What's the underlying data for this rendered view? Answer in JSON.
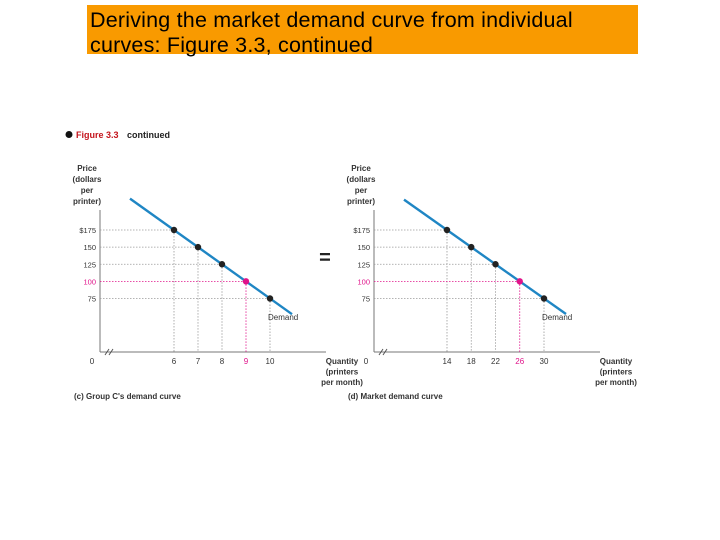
{
  "slide": {
    "title": "Deriving the market demand curve from individual curves: Figure 3.3, continued"
  },
  "figure": {
    "label": "Figure 3.3",
    "label_suffix": "continued",
    "equals_sign": "=",
    "colors": {
      "curve": "#1f86c4",
      "point": "#222222",
      "highlight": "#e0138a",
      "guide": "#9a9a9a",
      "label_red": "#c4141c"
    }
  },
  "chart_data": [
    {
      "type": "line",
      "title": "(c) Group C's demand curve",
      "ylabel": "Price (dollars per printer)",
      "xlabel": "Quantity (printers per month)",
      "origin_label": "0",
      "yticks": [
        "$175",
        "150",
        "125",
        "100",
        "75"
      ],
      "xticks": [
        "6",
        "7",
        "8",
        "9",
        "10"
      ],
      "series": [
        {
          "name": "Demand",
          "points": [
            {
              "x": 6,
              "y": 175
            },
            {
              "x": 7,
              "y": 150
            },
            {
              "x": 8,
              "y": 125
            },
            {
              "x": 9,
              "y": 100,
              "highlight": true
            },
            {
              "x": 10,
              "y": 75
            }
          ]
        }
      ]
    },
    {
      "type": "line",
      "title": "(d) Market demand curve",
      "ylabel": "Price (dollars per printer)",
      "xlabel": "Quantity (printers per month)",
      "origin_label": "0",
      "yticks": [
        "$175",
        "150",
        "125",
        "100",
        "75"
      ],
      "xticks": [
        "14",
        "18",
        "22",
        "26",
        "30"
      ],
      "series": [
        {
          "name": "Demand",
          "points": [
            {
              "x": 14,
              "y": 175
            },
            {
              "x": 18,
              "y": 150
            },
            {
              "x": 22,
              "y": 125
            },
            {
              "x": 26,
              "y": 100,
              "highlight": true
            },
            {
              "x": 30,
              "y": 75
            }
          ]
        }
      ]
    }
  ]
}
